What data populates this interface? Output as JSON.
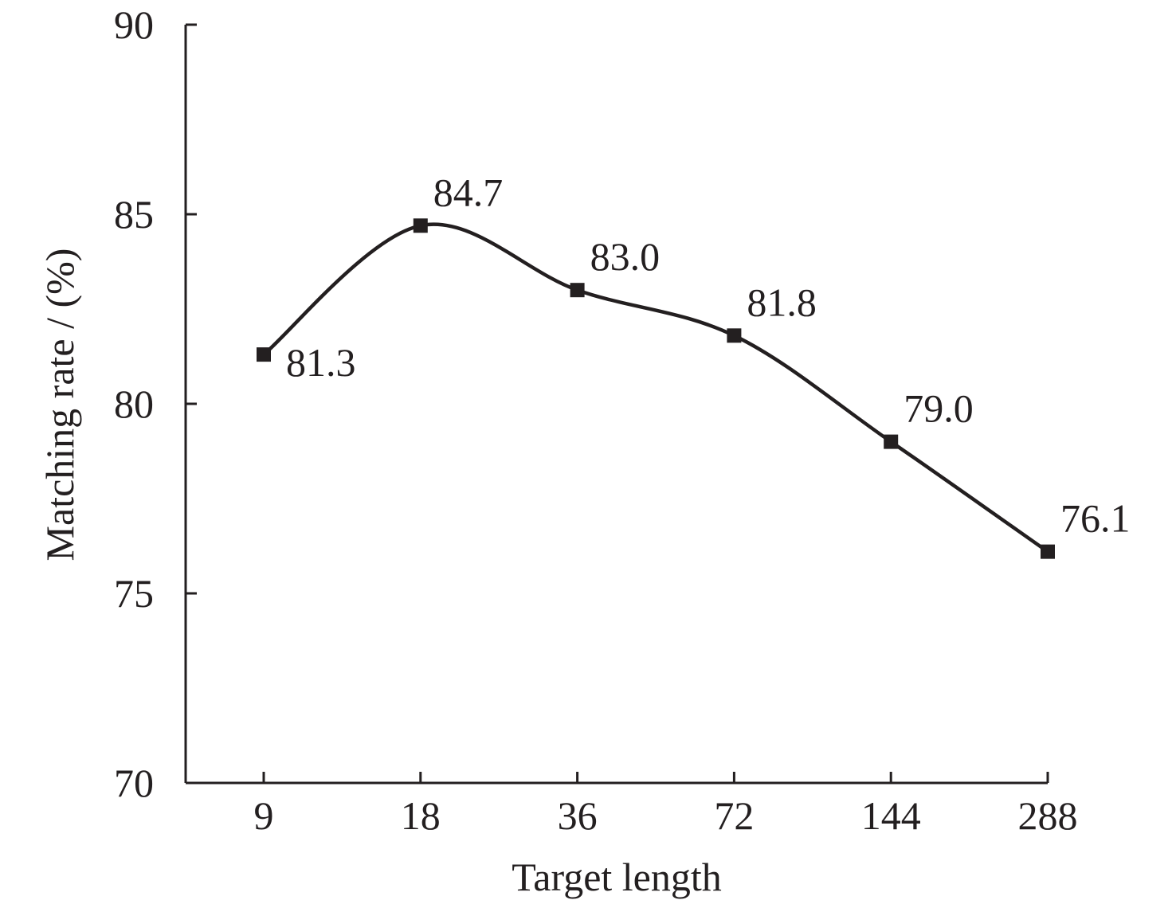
{
  "chart_data": {
    "type": "line",
    "categories": [
      "9",
      "18",
      "36",
      "72",
      "144",
      "288"
    ],
    "series": [
      {
        "values": [
          81.3,
          84.7,
          83.0,
          81.8,
          79.0,
          76.1
        ],
        "marker": "square",
        "smooth": true
      }
    ],
    "data_labels": [
      "81.3",
      "84.7",
      "83.0",
      "81.8",
      "79.0",
      "76.1"
    ],
    "xlabel": "Target length",
    "ylabel": "Matching rate / (%)",
    "ylim": [
      70,
      90
    ],
    "yticks": [
      70,
      75,
      80,
      85,
      90
    ],
    "grid": false,
    "colors": {
      "line": "#231f20",
      "axis": "#231f20",
      "background": "#ffffff"
    }
  }
}
